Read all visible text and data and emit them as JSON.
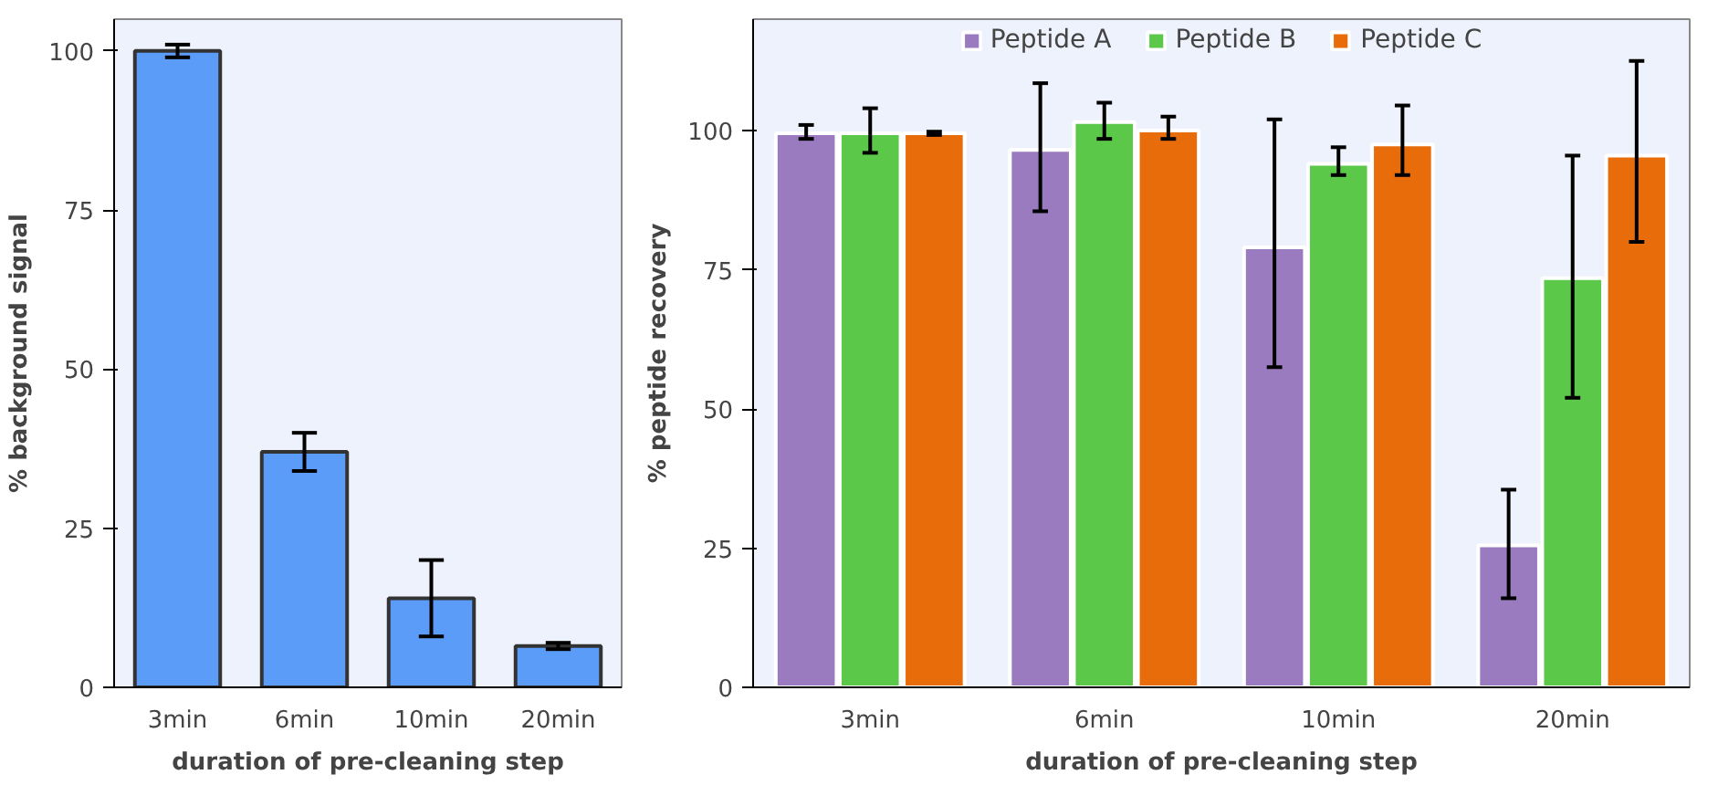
{
  "chart_data": [
    {
      "type": "bar",
      "xlabel": "duration of pre-cleaning step",
      "ylabel": "% background signal",
      "categories": [
        "3min",
        "6min",
        "10min",
        "20min"
      ],
      "series": [
        {
          "color": "#5a9cf8",
          "values": [
            100,
            37,
            14,
            6.5
          ],
          "errors": [
            1,
            [
              34,
              40
            ],
            [
              8,
              20
            ],
            0.5
          ]
        }
      ],
      "ylim": [
        0,
        105
      ],
      "yticks": [
        0,
        25,
        50,
        75,
        100
      ],
      "grid": false,
      "legend": false
    },
    {
      "type": "bar",
      "xlabel": "duration of pre-cleaning step",
      "ylabel": "% peptide recovery",
      "categories": [
        "3min",
        "6min",
        "10min",
        "20min"
      ],
      "series": [
        {
          "name": "Peptide A",
          "color": "#9b7bc0",
          "values": [
            99.5,
            96.5,
            79,
            25.5
          ],
          "errors": [
            [
              98.5,
              101
            ],
            [
              85.5,
              108.5
            ],
            [
              57.5,
              102
            ],
            [
              16,
              35.5
            ]
          ]
        },
        {
          "name": "Peptide B",
          "color": "#5cc84a",
          "values": [
            99.5,
            101.5,
            94,
            73.5
          ],
          "errors": [
            [
              96,
              104
            ],
            [
              98.5,
              105
            ],
            [
              92,
              97
            ],
            [
              52,
              95.5
            ]
          ]
        },
        {
          "name": "Peptide C",
          "color": "#e86c0a",
          "values": [
            99.5,
            100,
            97.5,
            95.5
          ],
          "errors": [
            0.3,
            [
              98.5,
              102.5
            ],
            [
              92,
              104.5
            ],
            [
              80,
              112.5
            ]
          ]
        }
      ],
      "ylim": [
        0,
        120
      ],
      "yticks": [
        0,
        25,
        50,
        75,
        100
      ],
      "grid": false,
      "legend": "top"
    }
  ]
}
